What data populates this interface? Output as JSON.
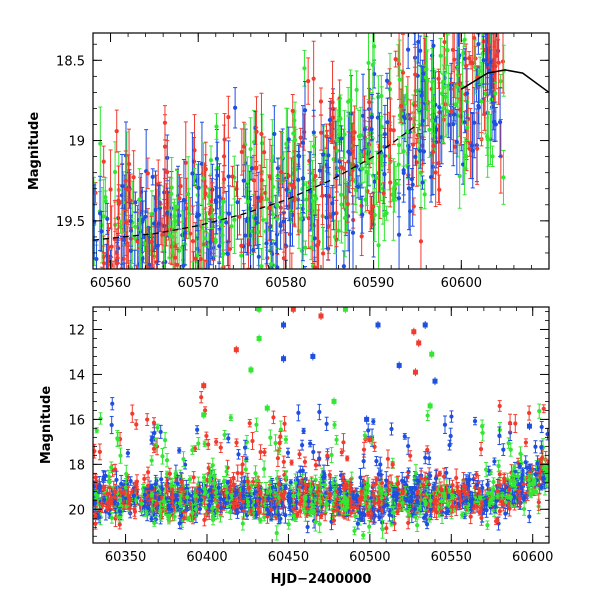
{
  "chart_data": [
    {
      "type": "scatter",
      "panel": "top",
      "xlim": [
        60558,
        60610
      ],
      "ylim": [
        19.8,
        18.33
      ],
      "y_inverted": true,
      "ylabel": "Magnitude",
      "xlabel": "",
      "x_ticks": [
        60560,
        60570,
        60580,
        60590,
        60600
      ],
      "x_tick_labels": [
        "60560",
        "60570",
        "60580",
        "60590",
        "60600"
      ],
      "y_ticks": [
        18.5,
        19,
        19.5
      ],
      "y_tick_labels": [
        "18.5",
        "19",
        "19.5"
      ],
      "grid": false,
      "series_colors": {
        "blue": "#1f4fe0",
        "green": "#33e633",
        "red": "#f23a2e"
      },
      "model_curve": {
        "color": "#000000",
        "style": "dashed-then-solid",
        "x": [
          60558,
          60565,
          60570,
          60575,
          60580,
          60585,
          60590,
          60595,
          60600,
          60603,
          60605,
          60607,
          60610
        ],
        "y": [
          19.62,
          19.58,
          19.53,
          19.46,
          19.37,
          19.25,
          19.1,
          18.9,
          18.68,
          18.58,
          18.56,
          18.58,
          18.7
        ]
      }
    },
    {
      "type": "scatter",
      "panel": "bottom",
      "xlim": [
        60330,
        60610
      ],
      "ylim": [
        21.5,
        11.0
      ],
      "y_inverted": true,
      "ylabel": "Magnitude",
      "xlabel": "HJD−2400000",
      "x_ticks": [
        60350,
        60400,
        60450,
        60500,
        60550,
        60600
      ],
      "x_tick_labels": [
        "60350",
        "60400",
        "60450",
        "60500",
        "60550",
        "60600"
      ],
      "y_ticks": [
        12,
        14,
        16,
        18,
        20
      ],
      "y_tick_labels": [
        "12",
        "14",
        "16",
        "18",
        "20"
      ],
      "grid": false,
      "series_colors": {
        "blue": "#1f4fe0",
        "green": "#33e633",
        "red": "#f23a2e"
      },
      "outliers": [
        {
          "band": "green",
          "x": 60432,
          "y": 11.1
        },
        {
          "band": "green",
          "x": 60432,
          "y": 12.4
        },
        {
          "band": "green",
          "x": 60427,
          "y": 13.8
        },
        {
          "band": "green",
          "x": 60398,
          "y": 15.8
        },
        {
          "band": "green",
          "x": 60437,
          "y": 15.5
        },
        {
          "band": "green",
          "x": 60478,
          "y": 15.2
        },
        {
          "band": "green",
          "x": 60485,
          "y": 11.1
        },
        {
          "band": "green",
          "x": 60538,
          "y": 13.1
        },
        {
          "band": "green",
          "x": 60537,
          "y": 15.4
        },
        {
          "band": "red",
          "x": 60418,
          "y": 12.9
        },
        {
          "band": "red",
          "x": 60398,
          "y": 14.5
        },
        {
          "band": "red",
          "x": 60453,
          "y": 11.1
        },
        {
          "band": "red",
          "x": 60470,
          "y": 11.4
        },
        {
          "band": "red",
          "x": 60527,
          "y": 12.1
        },
        {
          "band": "red",
          "x": 60530,
          "y": 12.6
        },
        {
          "band": "red",
          "x": 60528,
          "y": 13.9
        },
        {
          "band": "red",
          "x": 60500,
          "y": 16.9
        },
        {
          "band": "blue",
          "x": 60447,
          "y": 11.8
        },
        {
          "band": "blue",
          "x": 60447,
          "y": 13.3
        },
        {
          "band": "blue",
          "x": 60465,
          "y": 13.2
        },
        {
          "band": "blue",
          "x": 60505,
          "y": 11.8
        },
        {
          "band": "blue",
          "x": 60534,
          "y": 11.8
        },
        {
          "band": "blue",
          "x": 60540,
          "y": 14.3
        },
        {
          "band": "blue",
          "x": 60518,
          "y": 13.6
        },
        {
          "band": "blue",
          "x": 60598,
          "y": 16.3
        },
        {
          "band": "blue",
          "x": 60498,
          "y": 16.0
        }
      ]
    }
  ]
}
